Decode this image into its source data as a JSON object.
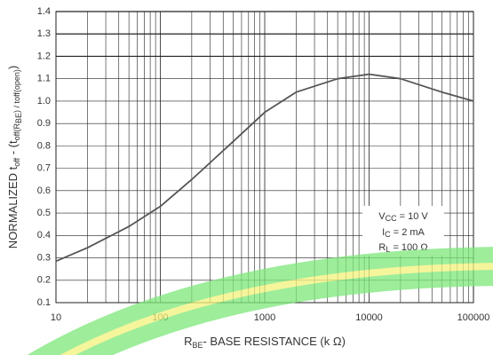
{
  "chart_data": {
    "type": "line",
    "ylabel": [
      "NORMALIZED t",
      "off",
      " - (t",
      "off(R",
      "BE",
      ") / t",
      "off(open)",
      ")"
    ],
    "xlabel": [
      "R",
      "BE",
      "- BASE RESISTANCE (k Ω)"
    ],
    "annotation": [
      [
        "V",
        "CC",
        " = 10 V"
      ],
      [
        "I",
        "C",
        " = 2 mA"
      ],
      [
        "R",
        "L",
        " = 100 Ω"
      ]
    ],
    "x": [
      10,
      20,
      50,
      100,
      200,
      500,
      1000,
      2000,
      5000,
      10000,
      20000,
      50000,
      100000
    ],
    "series": [
      {
        "color": "#555555",
        "values": [
          0.285,
          0.345,
          0.44,
          0.53,
          0.65,
          0.82,
          0.95,
          1.04,
          1.1,
          1.12,
          1.1,
          1.04,
          1.0
        ]
      }
    ],
    "xlim": [
      10,
      100000
    ],
    "xticks": [
      10,
      100,
      1000,
      10000,
      100000
    ],
    "xscale": "log",
    "ylim": [
      0.1,
      1.4
    ],
    "yticks": [
      0.1,
      0.2,
      0.3,
      0.4,
      0.5,
      0.6,
      0.7,
      0.8,
      0.9,
      {
        "value": 1,
        "label": "1.0"
      },
      1.1,
      1.2,
      1.3,
      1.4
    ],
    "grid": true,
    "minor_grid": true
  }
}
